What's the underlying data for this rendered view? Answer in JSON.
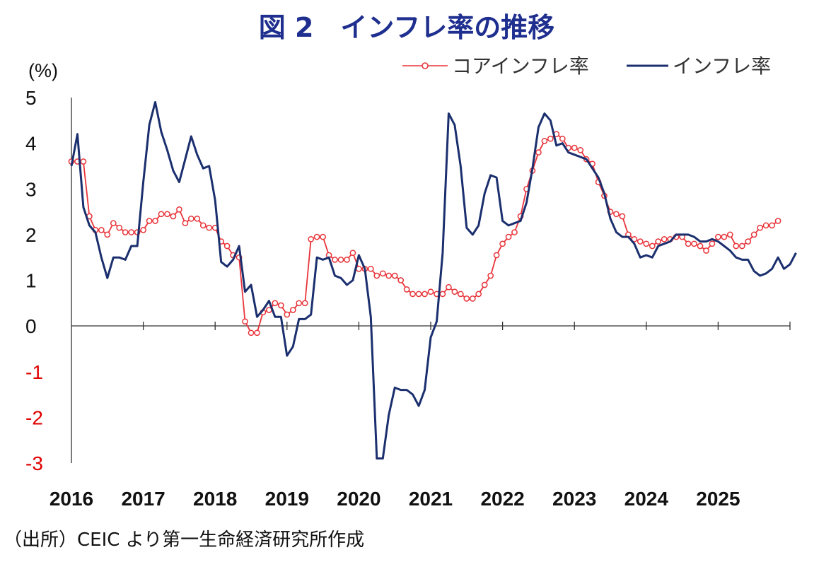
{
  "chart_data": {
    "type": "line",
    "title": "図 2　インフレ率の推移",
    "ylabel": "(%)",
    "ylim": [
      -3,
      5
    ],
    "yticks": [
      "5",
      "4",
      "3",
      "2",
      "1",
      "0",
      "-1",
      "-2",
      "-3"
    ],
    "xlim": [
      2016,
      2026
    ],
    "xticks": [
      "2016",
      "2017",
      "2018",
      "2019",
      "2020",
      "2021",
      "2022",
      "2023",
      "2024",
      "2025"
    ],
    "legend_position": "top-right",
    "source": "（出所）CEIC より第一生命経済研究所作成",
    "series": [
      {
        "name": "コアインフレ率",
        "color": "#e8343a",
        "marker": "circle",
        "start": 2016.0,
        "step": 0.0833333,
        "values": [
          3.6,
          3.6,
          3.6,
          2.4,
          2.1,
          2.1,
          2.0,
          2.25,
          2.15,
          2.05,
          2.05,
          2.05,
          2.1,
          2.3,
          2.3,
          2.45,
          2.45,
          2.4,
          2.55,
          2.25,
          2.35,
          2.35,
          2.2,
          2.15,
          2.15,
          1.85,
          1.75,
          1.55,
          1.5,
          0.1,
          -0.15,
          -0.15,
          0.3,
          0.35,
          0.5,
          0.45,
          0.25,
          0.35,
          0.5,
          0.5,
          1.9,
          1.95,
          1.95,
          1.55,
          1.45,
          1.45,
          1.45,
          1.6,
          1.25,
          1.25,
          1.25,
          1.1,
          1.15,
          1.1,
          1.1,
          1.0,
          0.8,
          0.7,
          0.7,
          0.7,
          0.75,
          0.7,
          0.7,
          0.85,
          0.75,
          0.7,
          0.6,
          0.6,
          0.7,
          0.9,
          1.1,
          1.55,
          1.8,
          1.95,
          2.05,
          2.4,
          3.0,
          3.4,
          3.8,
          4.05,
          4.1,
          4.2,
          4.1,
          3.9,
          3.9,
          3.85,
          3.65,
          3.55,
          3.15,
          2.85,
          2.5,
          2.45,
          2.4,
          2.0,
          1.9,
          1.85,
          1.8,
          1.75,
          1.85,
          1.9,
          1.9,
          1.95,
          1.95,
          1.8,
          1.8,
          1.75,
          1.65,
          1.8,
          1.95,
          1.95,
          2.0,
          1.75,
          1.75,
          1.85,
          2.0,
          2.15,
          2.2,
          2.2,
          2.3
        ]
      },
      {
        "name": "インフレ率",
        "color": "#1b2f6e",
        "marker": "none",
        "start": 2016.0,
        "step": 0.0833333,
        "values": [
          3.5,
          4.2,
          2.6,
          2.2,
          2.05,
          1.5,
          1.05,
          1.5,
          1.5,
          1.45,
          1.75,
          1.75,
          3.15,
          4.4,
          4.9,
          4.25,
          3.85,
          3.4,
          3.15,
          3.65,
          4.15,
          3.75,
          3.45,
          3.5,
          2.75,
          1.4,
          1.3,
          1.45,
          1.75,
          0.75,
          0.9,
          0.2,
          0.35,
          0.55,
          0.2,
          0.2,
          -0.65,
          -0.45,
          0.15,
          0.15,
          0.25,
          1.5,
          1.45,
          1.5,
          1.1,
          1.05,
          0.9,
          1.0,
          1.55,
          1.25,
          0.2,
          -2.9,
          -2.9,
          -1.95,
          -1.35,
          -1.4,
          -1.4,
          -1.5,
          -1.75,
          -1.4,
          -0.25,
          0.1,
          1.6,
          4.65,
          4.4,
          3.5,
          2.15,
          2.0,
          2.2,
          2.9,
          3.3,
          3.25,
          2.3,
          2.2,
          2.25,
          2.3,
          2.7,
          3.45,
          4.35,
          4.65,
          4.5,
          3.95,
          4.0,
          3.8,
          3.75,
          3.7,
          3.65,
          3.45,
          3.25,
          2.9,
          2.35,
          2.05,
          1.95,
          1.95,
          1.8,
          1.5,
          1.55,
          1.5,
          1.75,
          1.8,
          1.85,
          2.0,
          2.0,
          2.0,
          1.95,
          1.85,
          1.85,
          1.9,
          1.85,
          1.75,
          1.65,
          1.5,
          1.45,
          1.45,
          1.2,
          1.1,
          1.15,
          1.25,
          1.5,
          1.25,
          1.35,
          1.6
        ]
      }
    ]
  }
}
